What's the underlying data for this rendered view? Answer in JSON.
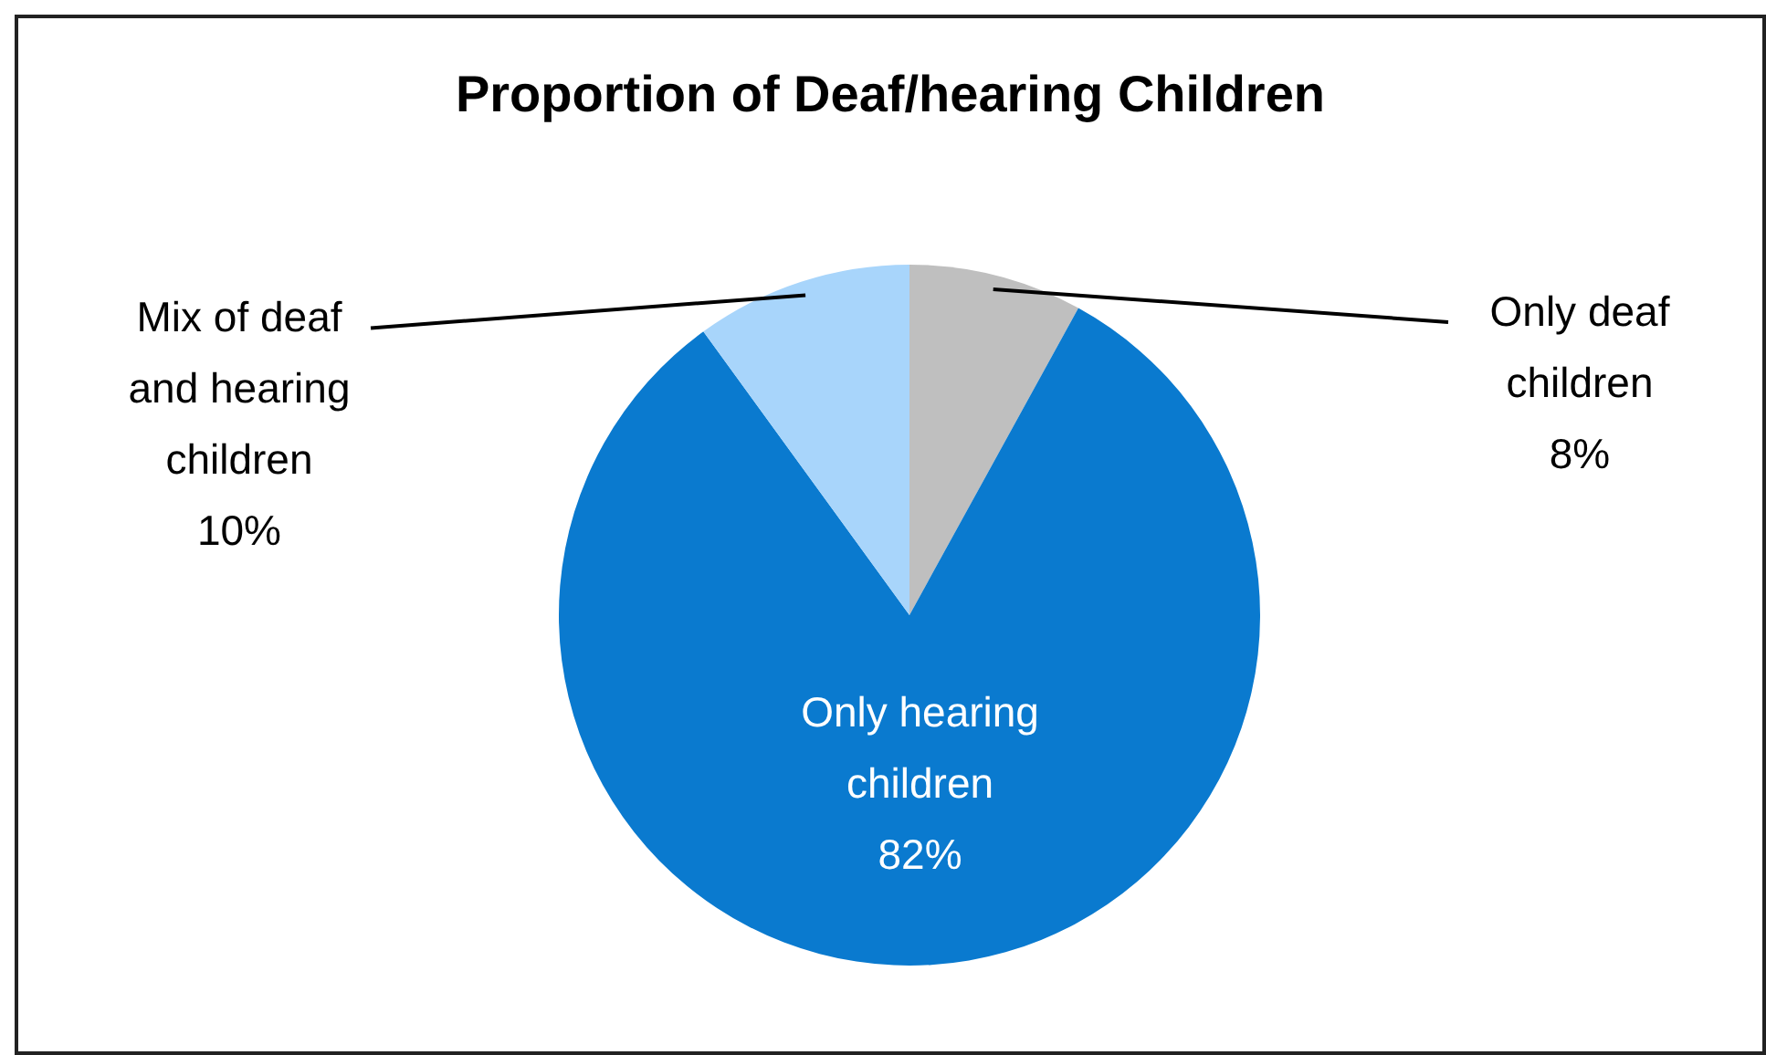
{
  "chart_data": {
    "type": "pie",
    "title": "Proportion of Deaf/hearing Children",
    "categories": [
      "Only deaf children",
      "Only hearing children",
      "Mix of deaf and hearing children"
    ],
    "values": [
      8,
      82,
      10
    ],
    "colors": [
      "#bfbfbf",
      "#0a7acf",
      "#a8d5fb"
    ],
    "value_labels": [
      "8%",
      "82%",
      "10%"
    ]
  }
}
